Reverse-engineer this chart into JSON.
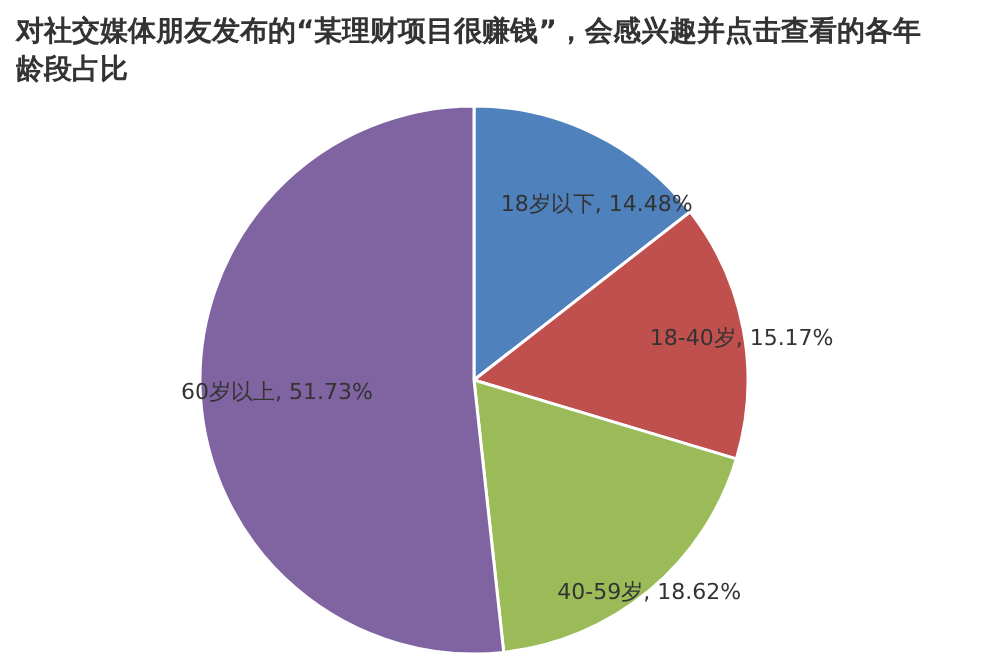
{
  "chart_data": {
    "type": "pie",
    "title": "对社交媒体朋友发布的“某理财项目很赚钱”，会感兴趣并点击查看的各年龄段占比",
    "categories": [
      "18岁以下",
      "18-40岁",
      "40-59岁",
      "60岁以上"
    ],
    "values": [
      14.48,
      15.17,
      18.62,
      51.73
    ],
    "value_labels": [
      "14.48%",
      "15.17%",
      "18.62%",
      "51.73%"
    ],
    "colors": [
      "#4f81bd",
      "#c0504d",
      "#9bbb59",
      "#8064a2"
    ]
  }
}
